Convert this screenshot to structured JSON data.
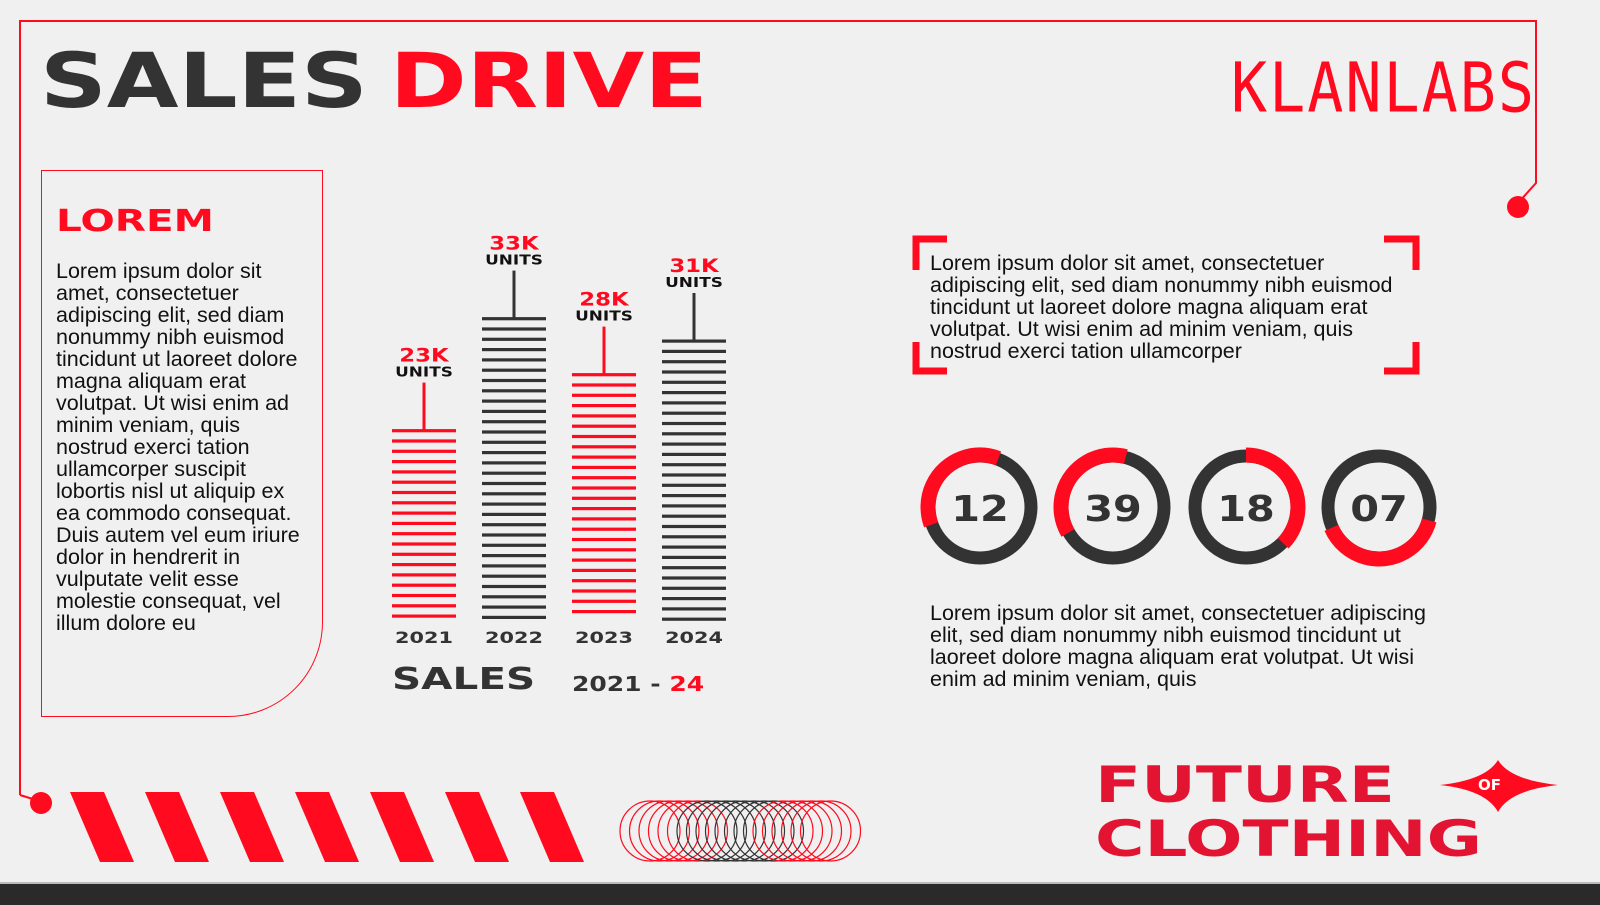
{
  "header": {
    "title_part1": "SALES",
    "title_part2": "DRIVE",
    "logo": "KLANLABS"
  },
  "left_panel": {
    "heading": "LOREM",
    "body": "Lorem ipsum dolor sit amet, consectetuer adipiscing elit, sed diam nonummy nibh euismod tincidunt ut laoreet dolore magna aliquam erat volutpat. Ut wisi enim ad minim veniam, quis nostrud exerci tation ullamcorper suscipit lobortis nisl ut aliquip ex ea commodo consequat. Duis autem vel eum iriure dolor in hendrerit in vulputate velit esse molestie consequat, vel illum dolore eu"
  },
  "chart_data": {
    "type": "bar",
    "title": "SALES",
    "range_label_start": "2021 -",
    "range_label_end": "24",
    "categories": [
      "2021",
      "2022",
      "2023",
      "2024"
    ],
    "values": [
      23,
      33,
      28,
      31
    ],
    "data_labels": [
      "23K",
      "33K",
      "28K",
      "31K"
    ],
    "unit_label": "UNITS",
    "bar_colors": [
      "#ff0a1e",
      "#333333",
      "#ff0a1e",
      "#333333"
    ]
  },
  "quote": {
    "text": "Lorem ipsum dolor sit amet, consectetuer adipiscing elit, sed diam nonummy nibh euismod tincidunt ut laoreet dolore magna aliquam erat volutpat. Ut wisi enim ad minim veniam, quis nostrud exerci tation ullamcorper"
  },
  "stats": [
    {
      "value": "12",
      "fill": 0.37
    },
    {
      "value": "39",
      "fill": 0.38
    },
    {
      "value": "18",
      "fill": 0.38
    },
    {
      "value": "07",
      "fill": 0.4
    }
  ],
  "bottom_text": "Lorem ipsum dolor sit amet, consectetuer adipiscing elit, sed diam nonummy nibh euismod tincidunt ut laoreet dolore magna aliquam erat volutpat. Ut wisi enim ad minim veniam, quis",
  "footer_logo": {
    "line1": "FUTURE",
    "of": "OF",
    "line2": "CLOTHING"
  },
  "colors": {
    "accent": "#ff0a1e",
    "dark": "#333333",
    "background": "#f0f0f0"
  }
}
